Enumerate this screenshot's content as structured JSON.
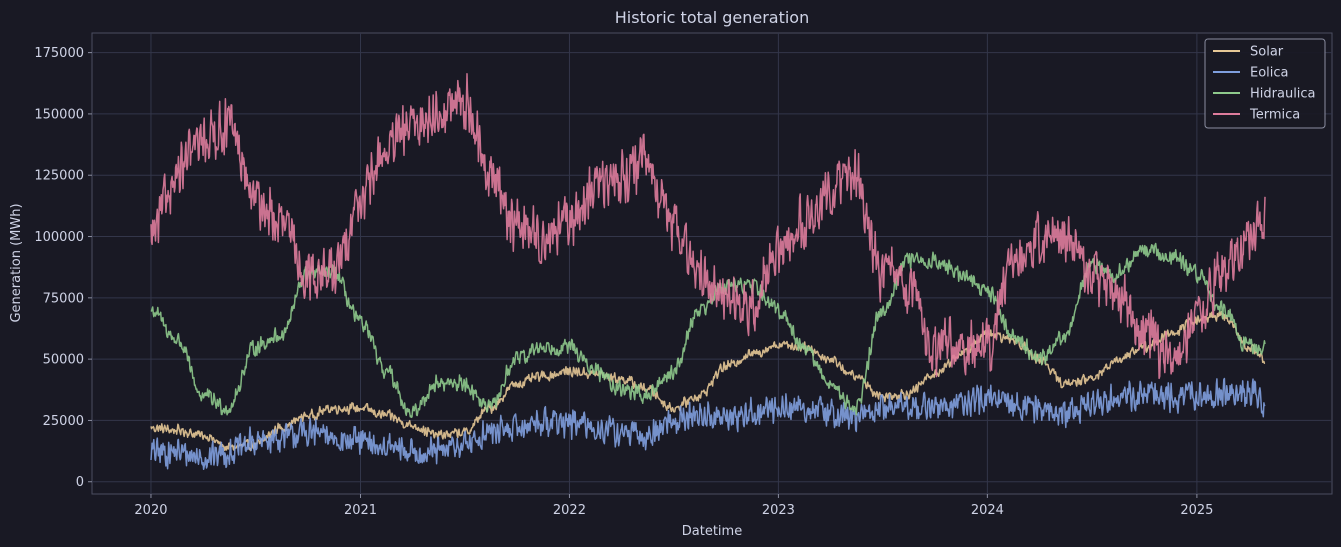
{
  "chart_data": {
    "type": "line",
    "title": "Historic total generation",
    "xlabel": "Datetime",
    "ylabel": "Generation (MWh)",
    "xlim": [
      "2019-09-20",
      "2025-08-25"
    ],
    "ylim": [
      -5000,
      183000
    ],
    "x_ticks": [
      "2020",
      "2021",
      "2022",
      "2023",
      "2024",
      "2025"
    ],
    "y_ticks": [
      0,
      25000,
      50000,
      75000,
      100000,
      125000,
      150000,
      175000
    ],
    "grid": true,
    "legend_position": "top-right",
    "date_range": [
      "2020-01-01",
      "2025-04-30"
    ],
    "sampling": "daily, summarized as approximate anchor values (one per listed date)",
    "anchor_dates": [
      "2020-01-01",
      "2020-02-15",
      "2020-04-01",
      "2020-05-15",
      "2020-07-01",
      "2020-08-15",
      "2020-10-01",
      "2020-11-15",
      "2021-01-01",
      "2021-02-15",
      "2021-04-01",
      "2021-05-15",
      "2021-07-01",
      "2021-08-15",
      "2021-10-01",
      "2021-11-15",
      "2022-01-01",
      "2022-02-15",
      "2022-04-01",
      "2022-05-15",
      "2022-07-01",
      "2022-08-15",
      "2022-10-01",
      "2022-11-15",
      "2023-01-01",
      "2023-02-15",
      "2023-04-01",
      "2023-05-15",
      "2023-07-01",
      "2023-08-15",
      "2023-10-01",
      "2023-11-15",
      "2024-01-01",
      "2024-02-15",
      "2024-04-01",
      "2024-05-15",
      "2024-07-01",
      "2024-08-15",
      "2024-10-01",
      "2024-11-15",
      "2025-01-01",
      "2025-02-15",
      "2025-04-01",
      "2025-04-30"
    ],
    "series": [
      {
        "name": "Solar",
        "color": "#e6c896",
        "noise": 2500,
        "values": [
          22000,
          21000,
          19000,
          14000,
          15000,
          22000,
          27000,
          30000,
          30000,
          27000,
          23000,
          19000,
          20000,
          30000,
          40000,
          43000,
          45000,
          44000,
          42000,
          38000,
          30000,
          35000,
          47000,
          52000,
          56000,
          55000,
          50000,
          43000,
          35000,
          36000,
          44000,
          52000,
          60000,
          58000,
          50000,
          40000,
          42000,
          50000,
          55000,
          60000,
          66000,
          68000,
          55000,
          50000
        ]
      },
      {
        "name": "Eolica",
        "color": "#7f9fde",
        "noise": 7000,
        "values": [
          12000,
          12000,
          10000,
          12000,
          16000,
          18000,
          20000,
          18000,
          16000,
          14000,
          12000,
          12000,
          15000,
          20000,
          22000,
          25000,
          24000,
          22000,
          20000,
          18000,
          25000,
          27000,
          26000,
          28000,
          30000,
          30000,
          28000,
          26000,
          30000,
          31000,
          30000,
          32000,
          33000,
          32000,
          30000,
          28000,
          32000,
          35000,
          35000,
          34000,
          35000,
          36000,
          36000,
          32000
        ]
      },
      {
        "name": "Hidraulica",
        "color": "#8ec98c",
        "noise": 4000,
        "values": [
          70000,
          58000,
          35000,
          30000,
          55000,
          60000,
          85000,
          85000,
          65000,
          45000,
          28000,
          40000,
          40000,
          30000,
          50000,
          55000,
          55000,
          45000,
          38000,
          35000,
          45000,
          70000,
          80000,
          80000,
          70000,
          55000,
          40000,
          30000,
          70000,
          90000,
          90000,
          85000,
          78000,
          60000,
          50000,
          60000,
          88000,
          85000,
          95000,
          92000,
          85000,
          70000,
          55000,
          55000
        ]
      },
      {
        "name": "Termica",
        "color": "#de7c9c",
        "noise": 13000,
        "values": [
          100000,
          125000,
          140000,
          145000,
          115000,
          105000,
          85000,
          85000,
          115000,
          135000,
          145000,
          150000,
          155000,
          125000,
          105000,
          100000,
          105000,
          120000,
          125000,
          130000,
          105000,
          85000,
          75000,
          70000,
          95000,
          105000,
          120000,
          125000,
          85000,
          80000,
          55000,
          55000,
          55000,
          90000,
          100000,
          100000,
          85000,
          75000,
          60000,
          50000,
          65000,
          85000,
          100000,
          105000
        ]
      }
    ]
  }
}
